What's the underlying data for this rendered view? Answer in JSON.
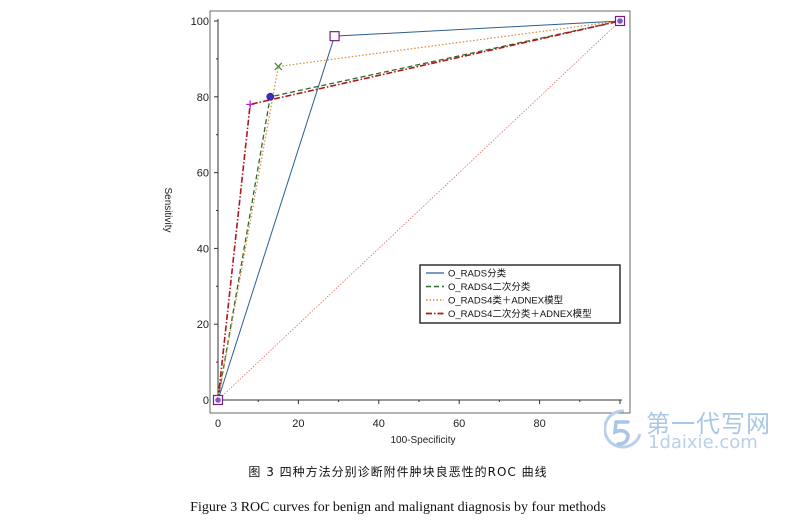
{
  "chart_data": {
    "type": "line",
    "xlabel": "100-Specificity",
    "ylabel": "Sensitivity",
    "xlim": [
      0,
      100
    ],
    "ylim": [
      0,
      100
    ],
    "xticks": [
      0,
      20,
      40,
      60,
      80,
      100
    ],
    "yticks": [
      0,
      20,
      40,
      60,
      80,
      100
    ],
    "xtick_labels": [
      "0",
      "20",
      "40",
      "60",
      "80",
      ""
    ],
    "ytick_labels": [
      "0",
      "20",
      "40",
      "60",
      "80",
      "100"
    ],
    "grid": false,
    "legend_position": "bottom-right",
    "series": [
      {
        "name": "O_RADS分类",
        "color": "#2b5f8f",
        "style": "solid",
        "marker": "square",
        "points": [
          [
            0,
            0
          ],
          [
            29,
            96
          ],
          [
            100,
            100
          ]
        ]
      },
      {
        "name": "O_RADS4二次分类",
        "color": "#2e6b2e",
        "style": "dashed",
        "marker": "circle",
        "points": [
          [
            0,
            0
          ],
          [
            13,
            80
          ],
          [
            100,
            100
          ]
        ]
      },
      {
        "name": "O_RADS4类＋ADNEX模型",
        "color": "#d8883a",
        "style": "dotted",
        "marker": "x",
        "points": [
          [
            0,
            0
          ],
          [
            15,
            88
          ],
          [
            100,
            100
          ]
        ]
      },
      {
        "name": "O_RADS4二次分类＋ADNEX模型",
        "color": "#b01818",
        "style": "dashdot",
        "marker": "plus",
        "points": [
          [
            0,
            0
          ],
          [
            8,
            78
          ],
          [
            100,
            100
          ]
        ]
      }
    ],
    "reference_line": {
      "color": "#e06a6a",
      "points": [
        [
          0,
          0
        ],
        [
          100,
          100
        ]
      ]
    }
  },
  "caption_cn": "图 3 四种方法分别诊断附件肿块良恶性的ROC 曲线",
  "caption_en": "Figure 3 ROC curves for benign and malignant diagnosis by four methods",
  "watermark": {
    "cn": "第一代写网",
    "en": "1daixie.com"
  }
}
